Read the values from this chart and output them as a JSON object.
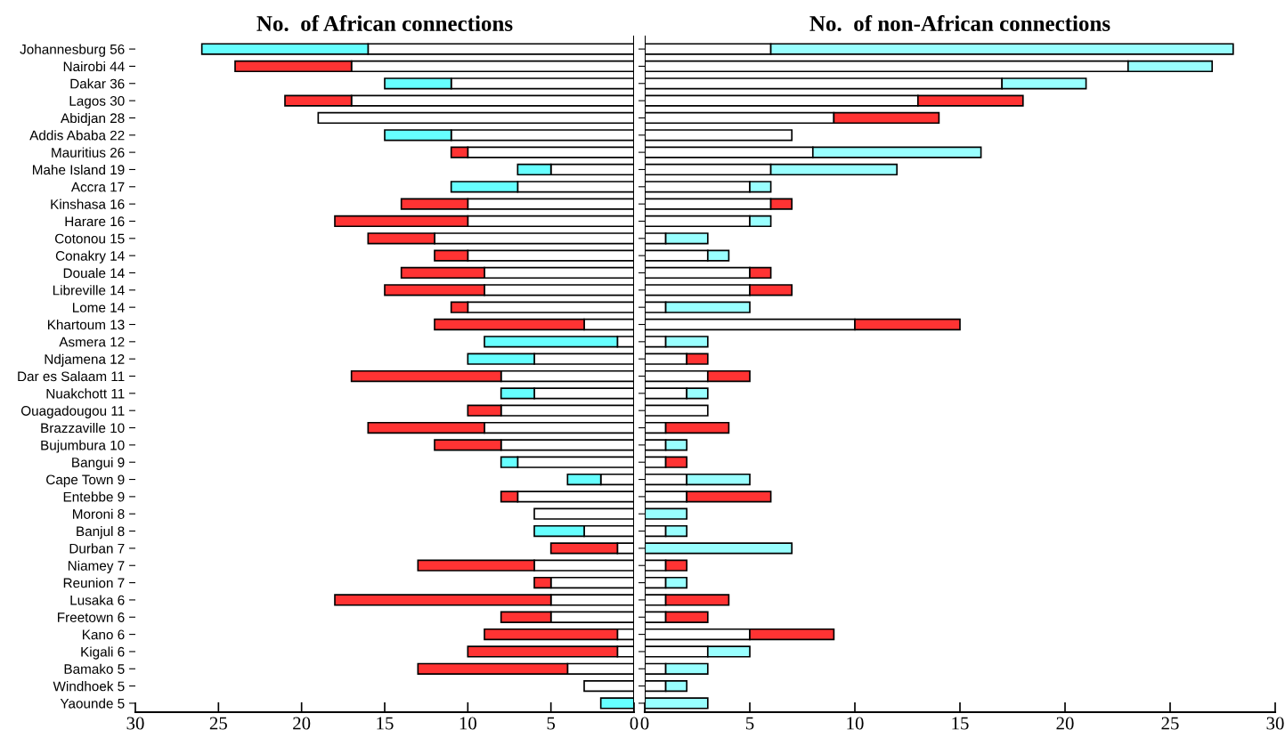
{
  "chart_data": [
    {
      "type": "bar",
      "orientation": "horizontal",
      "stacked": true,
      "title": "No.  of African connections",
      "categories": [
        "Johannesburg 56",
        "Nairobi 44",
        "Dakar 36",
        "Lagos 30",
        "Abidjan 28",
        "Addis Ababa 22",
        "Mauritius 26",
        "Mahe Island 19",
        "Accra 17",
        "Kinshasa 16",
        "Harare 16",
        "Cotonou 15",
        "Conakry 14",
        "Douale 14",
        "Libreville 14",
        "Lome 14",
        "Khartoum 13",
        "Asmera 12",
        "Ndjamena 12",
        "Dar es Salaam 11",
        "Nuakchott 11",
        "Ouagadougou 11",
        "Brazzaville 10",
        "Bujumbura 10",
        "Bangui 9",
        "Cape Town 9",
        "Entebbe 9",
        "Moroni 8",
        "Banjul 8",
        "Durban 7",
        "Niamey 7",
        "Reunion 7",
        "Lusaka 6",
        "Freetown 6",
        "Kano 6",
        "Kigali 6",
        "Bamako 5",
        "Windhoek 5",
        "Yaounde 5"
      ],
      "series": [
        {
          "color": "#ffffff",
          "values": [
            16,
            17,
            11,
            17,
            19,
            11,
            10,
            5,
            7,
            10,
            10,
            12,
            10,
            9,
            9,
            10,
            3,
            1,
            6,
            8,
            6,
            8,
            9,
            8,
            7,
            2,
            7,
            6,
            3,
            1,
            6,
            5,
            5,
            5,
            1,
            1,
            4,
            3,
            0
          ]
        },
        {
          "color": "#66ffff",
          "values": [
            10,
            null,
            4,
            null,
            null,
            4,
            null,
            2,
            4,
            null,
            null,
            null,
            null,
            null,
            null,
            null,
            null,
            8,
            4,
            null,
            2,
            null,
            null,
            null,
            1,
            2,
            null,
            null,
            3,
            null,
            null,
            null,
            null,
            null,
            null,
            null,
            null,
            null,
            2
          ]
        },
        {
          "color": "#ff3333",
          "values": [
            null,
            7,
            null,
            4,
            null,
            null,
            1,
            null,
            null,
            4,
            8,
            4,
            2,
            5,
            6,
            1,
            9,
            null,
            null,
            9,
            null,
            2,
            7,
            4,
            null,
            null,
            1,
            null,
            null,
            4,
            7,
            1,
            13,
            3,
            8,
            9,
            9,
            null,
            null
          ]
        }
      ],
      "xlim": [
        30,
        0
      ],
      "xticks": [
        0,
        5,
        10,
        15,
        20,
        25,
        30
      ],
      "grid": false,
      "legend": false
    },
    {
      "type": "bar",
      "orientation": "horizontal",
      "stacked": true,
      "title": "No.  of non-African connections",
      "tick_labels": "x",
      "categories": [
        null,
        null,
        null,
        null,
        null,
        null,
        null,
        null,
        null,
        null,
        null,
        null,
        null,
        null,
        null,
        null,
        null,
        null,
        null,
        null,
        null,
        null,
        null,
        null,
        null,
        null,
        null,
        null,
        null,
        null,
        null,
        null,
        null,
        null,
        null,
        null,
        null,
        null,
        null
      ],
      "series": [
        {
          "color": "#ffffff",
          "values": [
            6,
            23,
            17,
            13,
            9,
            7,
            8,
            6,
            5,
            6,
            5,
            1,
            3,
            5,
            5,
            1,
            10,
            1,
            2,
            3,
            2,
            3,
            1,
            1,
            1,
            2,
            2,
            0,
            1,
            0,
            1,
            1,
            1,
            1,
            5,
            3,
            1,
            1,
            0
          ]
        },
        {
          "color": "#99ffff",
          "values": [
            22,
            4,
            4,
            null,
            null,
            null,
            8,
            6,
            1,
            null,
            1,
            2,
            1,
            null,
            null,
            4,
            null,
            2,
            null,
            null,
            1,
            null,
            null,
            1,
            null,
            3,
            null,
            2,
            1,
            7,
            null,
            1,
            null,
            null,
            null,
            2,
            2,
            1,
            3
          ]
        },
        {
          "color": "#ff3333",
          "values": [
            null,
            null,
            null,
            5,
            5,
            null,
            null,
            null,
            null,
            1,
            null,
            null,
            null,
            1,
            2,
            null,
            5,
            null,
            1,
            2,
            null,
            null,
            3,
            null,
            1,
            null,
            4,
            null,
            null,
            null,
            1,
            null,
            3,
            2,
            4,
            null,
            null,
            null,
            null
          ]
        }
      ],
      "xlim": [
        0,
        30
      ],
      "xticks": [
        0,
        5,
        10,
        15,
        20,
        25,
        30
      ],
      "grid": false,
      "legend": false
    }
  ]
}
